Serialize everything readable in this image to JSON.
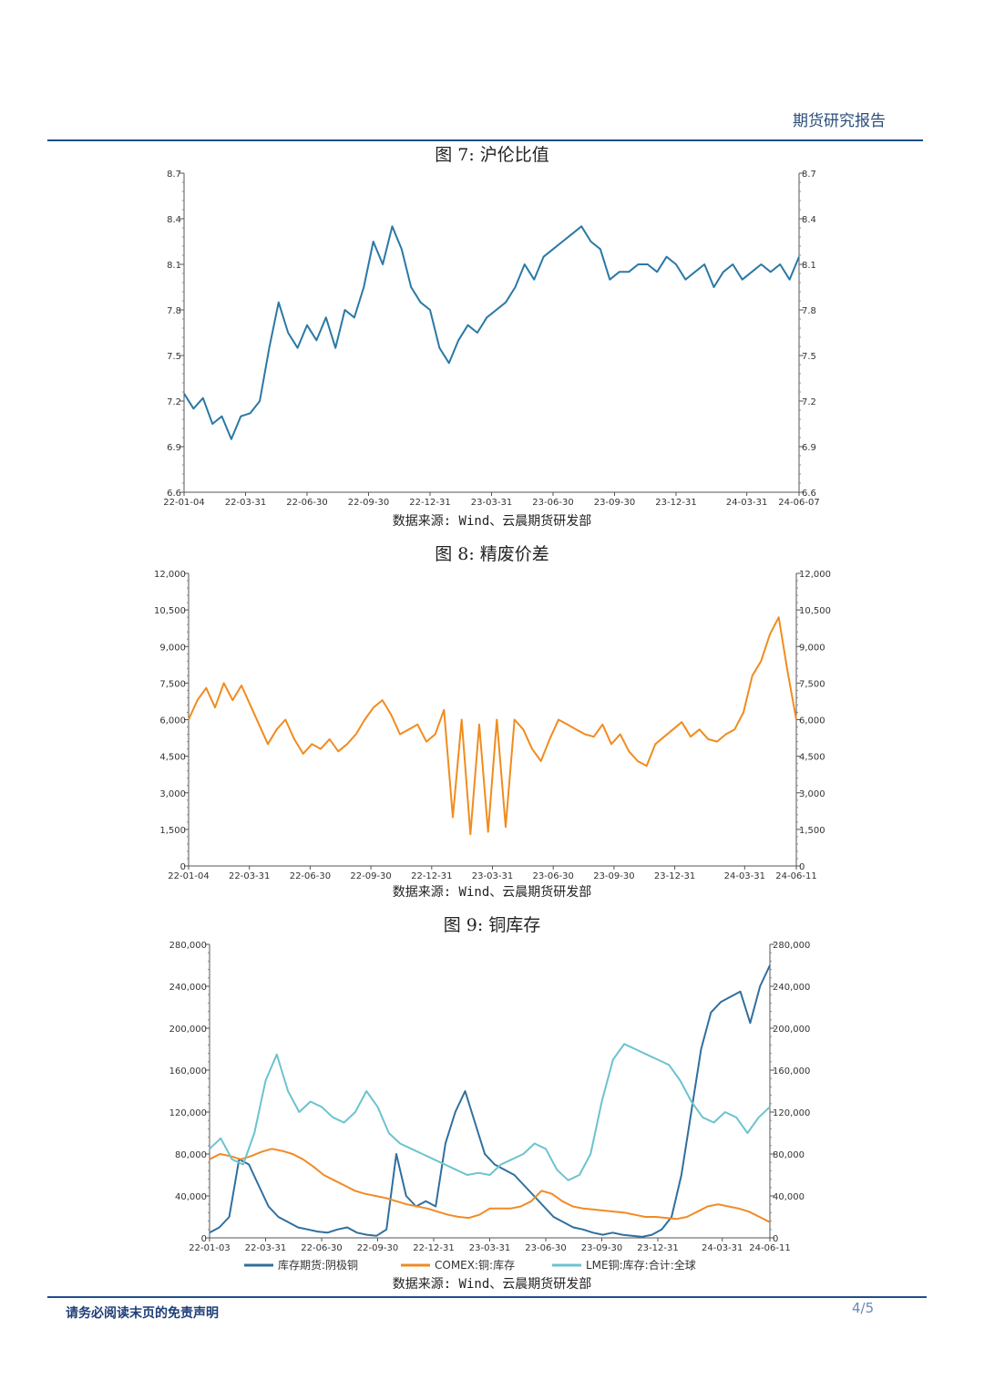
{
  "header": {
    "title": "期货研究报告"
  },
  "footer": {
    "note": "请务必阅读末页的免责声明",
    "page": "4/5"
  },
  "figures": [
    {
      "title": "图 7:  沪伦比值",
      "source": "数据来源: Wind、云晨期货研发部"
    },
    {
      "title": "图 8:  精废价差",
      "source": "数据来源: Wind、云晨期货研发部"
    },
    {
      "title": "图 9:  铜库存",
      "source": "数据来源: Wind、云晨期货研发部"
    }
  ],
  "chart_data": [
    {
      "type": "line",
      "color": "#2a78a6",
      "ylim": [
        6.6,
        8.7
      ],
      "yticks": [
        "6.6",
        "6.9",
        "7.2",
        "7.5",
        "7.8",
        "8.1",
        "8.4",
        "8.7"
      ],
      "ytick_values": [
        6.6,
        6.9,
        7.2,
        7.5,
        7.8,
        8.1,
        8.4,
        8.7
      ],
      "xticks": [
        "22-01-04",
        "22-03-31",
        "22-06-30",
        "22-09-30",
        "22-12-31",
        "23-03-31",
        "23-06-30",
        "23-09-30",
        "23-12-31",
        "24-03-31",
        "24-06-07"
      ],
      "series": [
        {
          "values": [
            7.25,
            7.15,
            7.22,
            7.05,
            7.1,
            6.95,
            7.1,
            7.12,
            7.2,
            7.55,
            7.85,
            7.65,
            7.55,
            7.7,
            7.6,
            7.75,
            7.55,
            7.8,
            7.75,
            7.95,
            8.25,
            8.1,
            8.35,
            8.2,
            7.95,
            7.85,
            7.8,
            7.55,
            7.45,
            7.6,
            7.7,
            7.65,
            7.75,
            7.8,
            7.85,
            7.95,
            8.1,
            8.0,
            8.15,
            8.2,
            8.25,
            8.3,
            8.35,
            8.25,
            8.2,
            8.0,
            8.05,
            8.05,
            8.1,
            8.1,
            8.05,
            8.15,
            8.1,
            8.0,
            8.05,
            8.1,
            7.95,
            8.05,
            8.1,
            8.0,
            8.05,
            8.1,
            8.05,
            8.1,
            8.0,
            8.15
          ]
        }
      ]
    },
    {
      "type": "line",
      "color": "#f08c1e",
      "ylim": [
        0,
        12000
      ],
      "yticks": [
        "0",
        "1,500",
        "3,000",
        "4,500",
        "6,000",
        "7,500",
        "9,000",
        "10,500",
        "12,000"
      ],
      "ytick_values": [
        0,
        1500,
        3000,
        4500,
        6000,
        7500,
        9000,
        10500,
        12000
      ],
      "xticks": [
        "22-01-04",
        "22-03-31",
        "22-06-30",
        "22-09-30",
        "22-12-31",
        "23-03-31",
        "23-06-30",
        "23-09-30",
        "23-12-31",
        "24-03-31",
        "24-06-11"
      ],
      "series": [
        {
          "values": [
            6000,
            6800,
            7300,
            6500,
            7500,
            6800,
            7400,
            6600,
            5800,
            5000,
            5600,
            6000,
            5200,
            4600,
            5000,
            4800,
            5200,
            4700,
            5000,
            5400,
            6000,
            6500,
            6800,
            6200,
            5400,
            5600,
            5800,
            5100,
            5400,
            6400,
            2000,
            6000,
            1300,
            5800,
            1400,
            6000,
            1600,
            6000,
            5600,
            4800,
            4300,
            5200,
            6000,
            5800,
            5600,
            5400,
            5300,
            5800,
            5000,
            5400,
            4700,
            4300,
            4100,
            5000,
            5300,
            5600,
            5900,
            5300,
            5600,
            5200,
            5100,
            5400,
            5600,
            6300,
            7800,
            8400,
            9500,
            10200,
            8000,
            6000
          ]
        }
      ]
    },
    {
      "type": "line",
      "ylim": [
        0,
        280000
      ],
      "yticks": [
        "0",
        "40,000",
        "80,000",
        "120,000",
        "160,000",
        "200,000",
        "240,000",
        "280,000"
      ],
      "ytick_values": [
        0,
        40000,
        80000,
        120000,
        160000,
        200000,
        240000,
        280000
      ],
      "xticks": [
        "22-01-03",
        "22-03-31",
        "22-06-30",
        "22-09-30",
        "22-12-31",
        "23-03-31",
        "23-06-30",
        "23-09-30",
        "23-12-31",
        "24-03-31",
        "24-06-11"
      ],
      "legend": [
        "库存期货:阴极铜",
        "COMEX:铜:库存",
        "LME铜:库存:合计:全球"
      ],
      "series": [
        {
          "name": "库存期货:阴极铜",
          "color": "#2f6f9e",
          "values": [
            5000,
            10000,
            20000,
            75000,
            70000,
            50000,
            30000,
            20000,
            15000,
            10000,
            8000,
            6000,
            5000,
            8000,
            10000,
            5000,
            3000,
            2000,
            8000,
            80000,
            40000,
            30000,
            35000,
            30000,
            90000,
            120000,
            140000,
            110000,
            80000,
            70000,
            65000,
            60000,
            50000,
            40000,
            30000,
            20000,
            15000,
            10000,
            8000,
            5000,
            3000,
            5000,
            3000,
            2000,
            1000,
            3000,
            8000,
            20000,
            60000,
            120000,
            180000,
            215000,
            225000,
            230000,
            235000,
            205000,
            240000,
            260000
          ]
        },
        {
          "name": "COMEX:铜:库存",
          "color": "#f28a25",
          "values": [
            75000,
            80000,
            78000,
            75000,
            78000,
            82000,
            85000,
            83000,
            80000,
            75000,
            68000,
            60000,
            55000,
            50000,
            45000,
            42000,
            40000,
            38000,
            35000,
            32000,
            30000,
            28000,
            25000,
            22000,
            20000,
            19000,
            22000,
            28000,
            28000,
            28000,
            30000,
            35000,
            45000,
            42000,
            35000,
            30000,
            28000,
            27000,
            26000,
            25000,
            24000,
            22000,
            20000,
            20000,
            19000,
            18000,
            20000,
            25000,
            30000,
            32000,
            30000,
            28000,
            25000,
            20000,
            15000
          ]
        },
        {
          "name": "LME铜:库存:合计:全球",
          "color": "#6cc3cf",
          "values": [
            85000,
            95000,
            75000,
            70000,
            100000,
            150000,
            175000,
            140000,
            120000,
            130000,
            125000,
            115000,
            110000,
            120000,
            140000,
            125000,
            100000,
            90000,
            85000,
            80000,
            75000,
            70000,
            65000,
            60000,
            62000,
            60000,
            70000,
            75000,
            80000,
            90000,
            85000,
            65000,
            55000,
            60000,
            80000,
            130000,
            170000,
            185000,
            180000,
            175000,
            170000,
            165000,
            150000,
            130000,
            115000,
            110000,
            120000,
            115000,
            100000,
            115000,
            125000
          ]
        }
      ]
    }
  ]
}
